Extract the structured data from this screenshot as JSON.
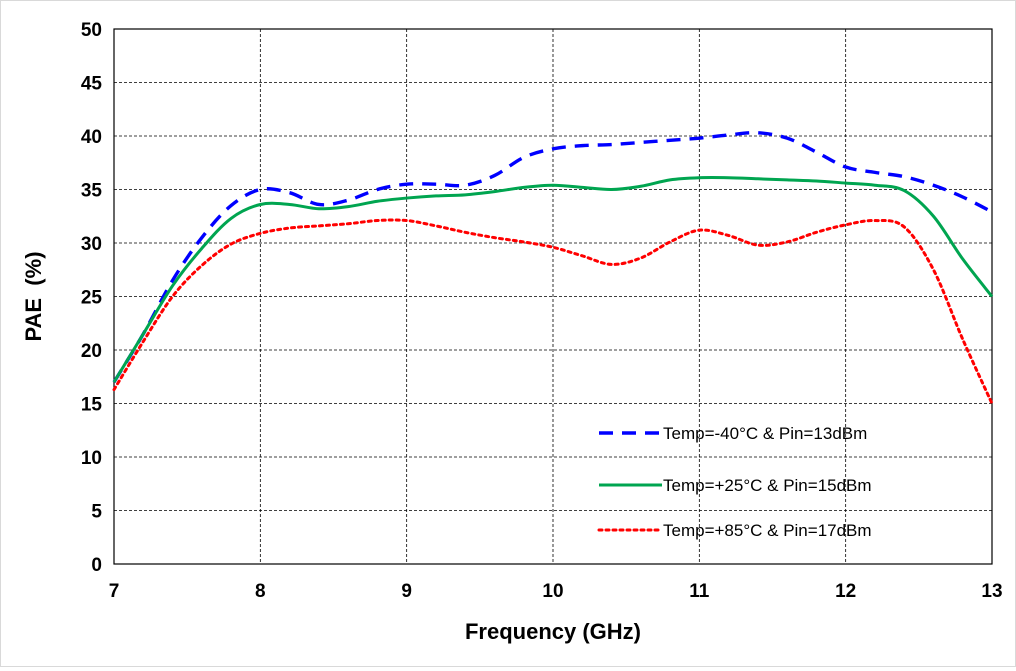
{
  "chart_data": {
    "type": "line",
    "title": "",
    "xlabel": "Frequency (GHz)",
    "ylabel": "PAE  (%)",
    "xlim": [
      7,
      13
    ],
    "ylim": [
      0,
      50
    ],
    "x_ticks": [
      7,
      8,
      9,
      10,
      11,
      12,
      13
    ],
    "y_ticks": [
      0,
      5,
      10,
      15,
      20,
      25,
      30,
      35,
      40,
      45,
      50
    ],
    "grid": true,
    "legend_position": "bottom-right",
    "series": [
      {
        "name": "Temp=-40°C & Pin=13dBm",
        "color": "#0000ff",
        "style": "dashed",
        "x": [
          7.0,
          7.2,
          7.4,
          7.6,
          7.8,
          8.0,
          8.2,
          8.4,
          8.6,
          8.8,
          9.0,
          9.2,
          9.4,
          9.6,
          9.8,
          10.0,
          10.2,
          10.4,
          10.6,
          10.8,
          11.0,
          11.2,
          11.4,
          11.6,
          11.8,
          12.0,
          12.2,
          12.4,
          12.6,
          12.8,
          13.0
        ],
        "y": [
          17.0,
          21.5,
          26.5,
          30.5,
          33.5,
          35.0,
          34.7,
          33.6,
          34.0,
          35.0,
          35.5,
          35.5,
          35.4,
          36.3,
          38.0,
          38.8,
          39.1,
          39.2,
          39.4,
          39.6,
          39.8,
          40.1,
          40.3,
          39.8,
          38.5,
          37.1,
          36.6,
          36.2,
          35.4,
          34.3,
          32.9
        ]
      },
      {
        "name": "Temp=+25°C & Pin=15dBm",
        "color": "#00a550",
        "style": "solid",
        "x": [
          7.0,
          7.2,
          7.4,
          7.6,
          7.8,
          8.0,
          8.2,
          8.4,
          8.6,
          8.8,
          9.0,
          9.2,
          9.4,
          9.6,
          9.8,
          10.0,
          10.2,
          10.4,
          10.6,
          10.8,
          11.0,
          11.2,
          11.4,
          11.6,
          11.8,
          12.0,
          12.2,
          12.4,
          12.6,
          12.8,
          13.0
        ],
        "y": [
          17.0,
          21.5,
          26.0,
          29.5,
          32.3,
          33.6,
          33.6,
          33.2,
          33.4,
          33.9,
          34.2,
          34.4,
          34.5,
          34.8,
          35.2,
          35.4,
          35.2,
          35.0,
          35.3,
          35.9,
          36.1,
          36.1,
          36.0,
          35.9,
          35.8,
          35.6,
          35.4,
          34.9,
          32.5,
          28.5,
          25.0
        ]
      },
      {
        "name": "Temp=+85°C & Pin=17dBm",
        "color": "#ff0000",
        "style": "dotted",
        "x": [
          7.0,
          7.2,
          7.4,
          7.6,
          7.8,
          8.0,
          8.2,
          8.4,
          8.6,
          8.8,
          9.0,
          9.2,
          9.4,
          9.6,
          9.8,
          10.0,
          10.2,
          10.4,
          10.6,
          10.8,
          11.0,
          11.2,
          11.4,
          11.6,
          11.8,
          12.0,
          12.2,
          12.4,
          12.6,
          12.8,
          13.0
        ],
        "y": [
          16.3,
          20.8,
          25.0,
          27.9,
          29.9,
          30.9,
          31.4,
          31.6,
          31.8,
          32.1,
          32.1,
          31.6,
          31.0,
          30.5,
          30.1,
          29.6,
          28.8,
          28.0,
          28.6,
          30.1,
          31.2,
          30.7,
          29.8,
          30.1,
          31.0,
          31.7,
          32.1,
          31.5,
          27.5,
          21.0,
          15.0
        ]
      }
    ]
  }
}
